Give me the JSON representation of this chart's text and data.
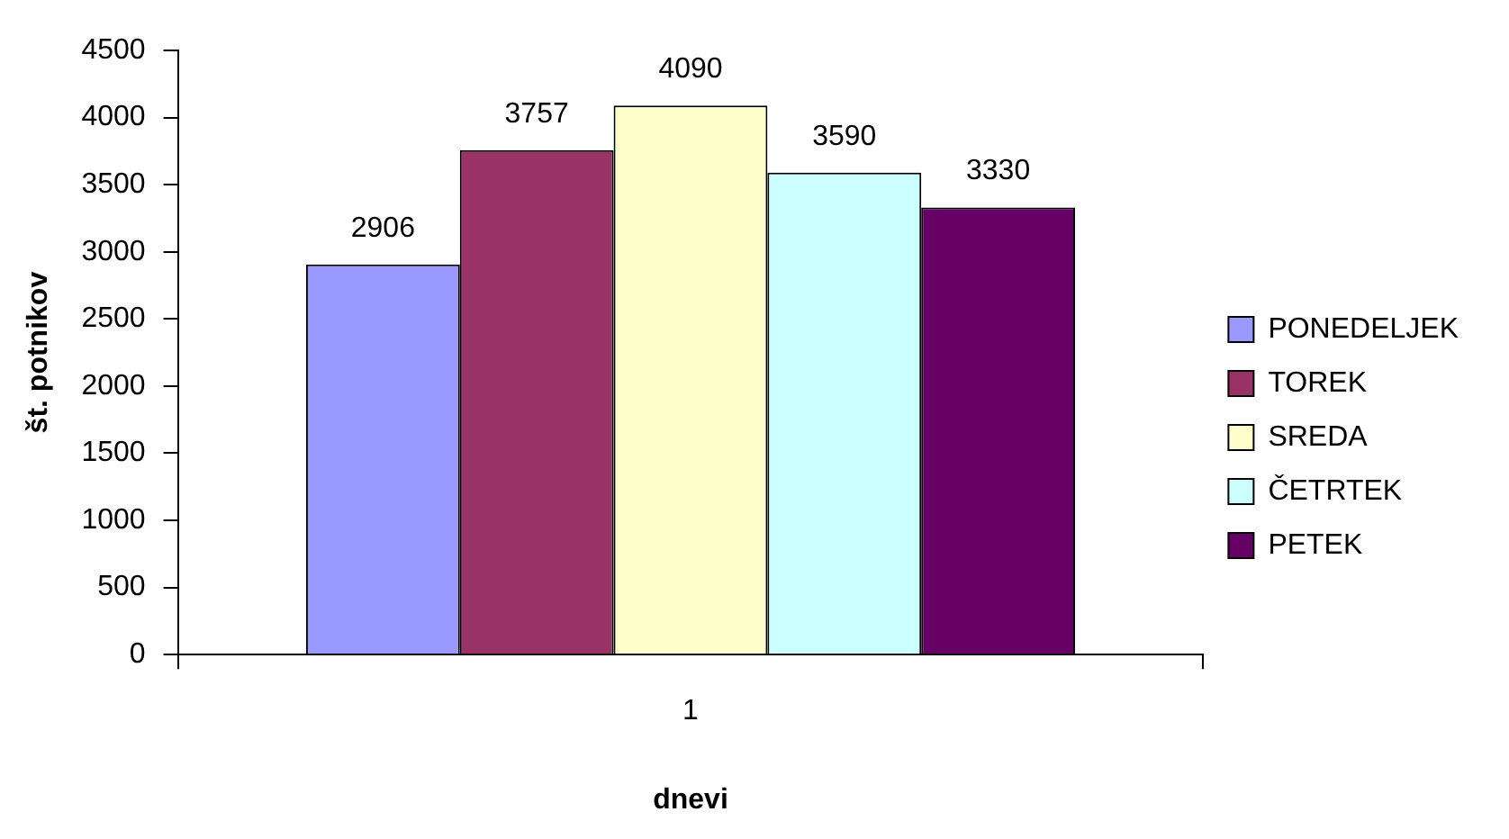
{
  "chart_data": {
    "type": "bar",
    "xlabel": "dnevi",
    "ylabel": "št. potnikov",
    "categories": [
      "1"
    ],
    "series": [
      {
        "name": "PONEDELJEK",
        "color": "#9999ff",
        "values": [
          2906
        ]
      },
      {
        "name": "TOREK",
        "color": "#993366",
        "values": [
          3757
        ]
      },
      {
        "name": "SREDA",
        "color": "#ffffcc",
        "values": [
          4090
        ]
      },
      {
        "name": "ČETRTEK",
        "color": "#ccffff",
        "values": [
          3590
        ]
      },
      {
        "name": "PETEK",
        "color": "#660066",
        "values": [
          3330
        ]
      }
    ],
    "ylim": [
      0,
      4500
    ],
    "yticks": [
      0,
      500,
      1000,
      1500,
      2000,
      2500,
      3000,
      3500,
      4000,
      4500
    ],
    "data_labels": true,
    "grid": false,
    "legend": "right"
  }
}
